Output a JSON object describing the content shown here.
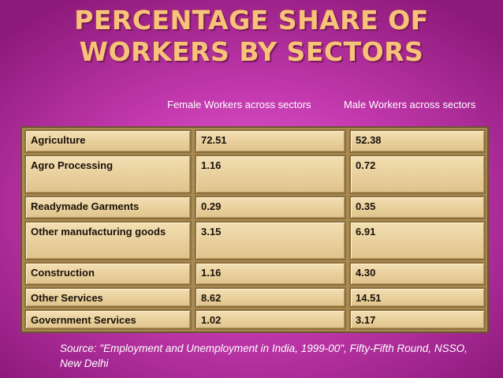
{
  "title": "PERCENTAGE SHARE OF WORKERS BY SECTORS",
  "columns": {
    "female": "Female Workers across sectors",
    "male": "Male Workers across sectors"
  },
  "rows": [
    {
      "sector": "Agriculture",
      "female": "72.51",
      "male": "52.38"
    },
    {
      "sector": "Agro Processing",
      "female": "1.16",
      "male": "0.72"
    },
    {
      "sector": "Readymade Garments",
      "female": "0.29",
      "male": "0.35"
    },
    {
      "sector": "Other manufacturing goods",
      "female": "3.15",
      "male": "6.91"
    },
    {
      "sector": "Construction",
      "female": "1.16",
      "male": "4.30"
    },
    {
      "sector": "Other Services",
      "female": "8.62",
      "male": "14.51"
    },
    {
      "sector": "Government Services",
      "female": "1.02",
      "male": "3.17"
    }
  ],
  "source": "Source: \"Employment and Unemployment in India, 1999-00\", Fifty-Fifth Round, NSSO, New Delhi"
}
